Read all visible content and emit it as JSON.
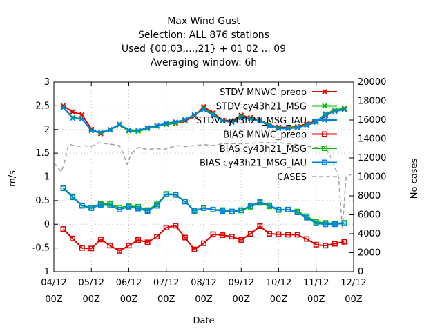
{
  "chart_data": {
    "type": "line",
    "title_lines": [
      "Max Wind Gust",
      "Selection: ALL    876 stations",
      "Used {00,03,...,21} + 01 02 ... 09",
      "Averaging window:  6h"
    ],
    "xlabel": "Date",
    "ylabel": "m/s",
    "y2label": "No cases",
    "xlim": [
      0,
      8
    ],
    "ylim": [
      -1,
      3
    ],
    "y2lim": [
      0,
      20000
    ],
    "x_ticks": [
      {
        "value": 0,
        "line1": "04/12",
        "line2": "00Z"
      },
      {
        "value": 1,
        "line1": "05/12",
        "line2": "00Z"
      },
      {
        "value": 2,
        "line1": "06/12",
        "line2": "00Z"
      },
      {
        "value": 3,
        "line1": "07/12",
        "line2": "00Z"
      },
      {
        "value": 4,
        "line1": "08/12",
        "line2": "00Z"
      },
      {
        "value": 5,
        "line1": "09/12",
        "line2": "00Z"
      },
      {
        "value": 6,
        "line1": "10/12",
        "line2": "00Z"
      },
      {
        "value": 7,
        "line1": "11/12",
        "line2": "00Z"
      },
      {
        "value": 8,
        "line1": "12/12",
        "line2": "00Z"
      }
    ],
    "y_ticks": [
      "-1",
      "-0.5",
      "0",
      "0.5",
      "1",
      "1.5",
      "2",
      "2.5",
      "3"
    ],
    "y2_ticks": [
      "0",
      "2000",
      "4000",
      "6000",
      "8000",
      "10000",
      "12000",
      "14000",
      "16000",
      "18000",
      "20000"
    ],
    "legend_position": "top-right",
    "x": [
      0.25,
      0.5,
      0.75,
      1.0,
      1.25,
      1.5,
      1.75,
      2.0,
      2.25,
      2.5,
      2.75,
      3.0,
      3.25,
      3.5,
      3.75,
      4.0,
      4.25,
      4.5,
      4.75,
      5.0,
      5.25,
      5.5,
      5.75,
      6.0,
      6.25,
      6.5,
      6.75,
      7.0,
      7.25,
      7.5,
      7.75
    ],
    "series": [
      {
        "name": "STDV MNWC_preop",
        "axis": "y1",
        "color": "#e00000",
        "marker": "x",
        "dash": false,
        "values": [
          2.5,
          2.37,
          2.31,
          2.01,
          1.91,
          2.0,
          2.1,
          1.97,
          1.97,
          2.03,
          2.07,
          2.11,
          2.13,
          2.18,
          2.28,
          2.48,
          2.35,
          2.2,
          2.18,
          2.3,
          2.25,
          2.2,
          2.1,
          2.05,
          2.04,
          2.06,
          2.12,
          2.18,
          2.29,
          2.39,
          2.43
        ]
      },
      {
        "name": "STDV cy43h21_MSG",
        "axis": "y1",
        "color": "#00c000",
        "marker": "x",
        "dash": false,
        "values": [
          2.47,
          2.25,
          2.23,
          1.97,
          1.93,
          1.99,
          2.1,
          1.97,
          1.96,
          2.02,
          2.07,
          2.11,
          2.14,
          2.2,
          2.3,
          2.44,
          2.32,
          2.18,
          2.16,
          2.27,
          2.23,
          2.19,
          2.09,
          2.03,
          2.03,
          2.05,
          2.1,
          2.17,
          2.33,
          2.41,
          2.45
        ]
      },
      {
        "name": "STDV cy43h21_MSG_IAU",
        "axis": "y1",
        "color": "#0080e0",
        "marker": "x",
        "dash": false,
        "values": [
          2.46,
          2.24,
          2.22,
          1.98,
          1.94,
          2.0,
          2.11,
          1.99,
          1.98,
          2.04,
          2.08,
          2.13,
          2.16,
          2.21,
          2.31,
          2.42,
          2.3,
          2.19,
          2.15,
          2.25,
          2.22,
          2.18,
          2.07,
          2.02,
          2.02,
          2.04,
          2.09,
          2.15,
          2.31,
          2.38,
          2.42
        ]
      },
      {
        "name": "BIAS MNWC_preop",
        "axis": "y1",
        "color": "#e00000",
        "marker": "square",
        "dash": false,
        "values": [
          -0.1,
          -0.3,
          -0.5,
          -0.51,
          -0.32,
          -0.45,
          -0.56,
          -0.45,
          -0.33,
          -0.38,
          -0.26,
          -0.07,
          -0.03,
          -0.28,
          -0.53,
          -0.4,
          -0.21,
          -0.23,
          -0.26,
          -0.33,
          -0.2,
          -0.04,
          -0.2,
          -0.21,
          -0.22,
          -0.22,
          -0.31,
          -0.43,
          -0.45,
          -0.41,
          -0.37
        ]
      },
      {
        "name": "BIAS cy43h21_MSG",
        "axis": "y1",
        "color": "#00c000",
        "marker": "square",
        "dash": false,
        "values": [
          0.77,
          0.59,
          0.4,
          0.35,
          0.43,
          0.43,
          0.35,
          0.38,
          0.37,
          0.3,
          0.42,
          0.64,
          0.63,
          0.48,
          0.28,
          0.35,
          0.31,
          0.3,
          0.27,
          0.29,
          0.37,
          0.45,
          0.38,
          0.3,
          0.31,
          0.27,
          0.17,
          0.05,
          0.03,
          0.02,
          0.03
        ]
      },
      {
        "name": "BIAS cy43h21_MSG_IAU",
        "axis": "y1",
        "color": "#0080e0",
        "marker": "square",
        "dash": false,
        "values": [
          0.76,
          0.57,
          0.39,
          0.34,
          0.41,
          0.4,
          0.31,
          0.37,
          0.33,
          0.28,
          0.39,
          0.63,
          0.62,
          0.48,
          0.29,
          0.34,
          0.31,
          0.28,
          0.27,
          0.3,
          0.39,
          0.47,
          0.4,
          0.31,
          0.31,
          0.25,
          0.14,
          0.02,
          0.0,
          0.0,
          0.02
        ]
      },
      {
        "name": "CASES",
        "axis": "y2",
        "color": "#a0a0a0",
        "marker": "none",
        "dash": true,
        "x": [
          0.0,
          0.1,
          0.2,
          0.3,
          0.38,
          0.45,
          0.6,
          0.8,
          1.0,
          1.2,
          1.4,
          1.6,
          1.75,
          1.85,
          1.95,
          2.02,
          2.1,
          2.25,
          2.5,
          2.75,
          2.95,
          3.1,
          3.3,
          3.5,
          3.75,
          4.0,
          4.25,
          4.5,
          5.0,
          5.5,
          6.0,
          6.5,
          7.0,
          7.2,
          7.35,
          7.5,
          7.6,
          7.7,
          7.8,
          7.95
        ],
        "values": [
          11500,
          11000,
          10500,
          11800,
          13200,
          13400,
          13200,
          13300,
          13200,
          13600,
          13500,
          13400,
          13300,
          12500,
          11300,
          12000,
          12600,
          13100,
          12900,
          13000,
          12900,
          13100,
          13300,
          13200,
          13300,
          13400,
          13300,
          13500,
          13500,
          13600,
          13600,
          13400,
          13100,
          13200,
          12500,
          11000,
          10000,
          4500,
          10000,
          10300
        ]
      }
    ]
  }
}
